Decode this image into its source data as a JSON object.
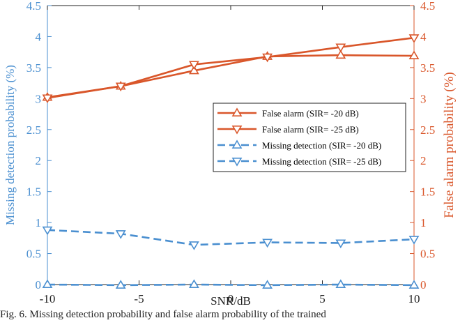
{
  "caption": "Fig. 6.  Missing detection probability and false alarm probability of the trained",
  "chart_data": {
    "type": "line",
    "xlabel": "SNR/dB",
    "ylabel_left": "Missing detection probability (%)",
    "ylabel_right": "False alarm probability (%)",
    "xlim": [
      -10,
      10
    ],
    "ylim_left": [
      0,
      4.5
    ],
    "ylim_right": [
      0,
      4.5
    ],
    "xticks": [
      -10,
      -5,
      0,
      5,
      10
    ],
    "xtick_labels": [
      "-10",
      "-5",
      "0",
      "5",
      "10"
    ],
    "yticks": [
      0,
      0.5,
      1,
      1.5,
      2,
      2.5,
      3,
      3.5,
      4,
      4.5
    ],
    "ytick_labels": [
      "0",
      "0.5",
      "1",
      "1.5",
      "2",
      "2.5",
      "3",
      "3.5",
      "4",
      "4.5"
    ],
    "grid": false,
    "legend_position": "right-middle",
    "series": [
      {
        "name": "False alarm (SIR= -20 dB)",
        "axis": "right",
        "color": "#d9562a",
        "dash": "solid",
        "marker": "triangle-up",
        "x": [
          -10,
          -6,
          -2,
          2,
          6,
          10
        ],
        "y": [
          3.02,
          3.2,
          3.45,
          3.68,
          3.7,
          3.69
        ]
      },
      {
        "name": "False alarm (SIR= -25 dB)",
        "axis": "right",
        "color": "#d9562a",
        "dash": "solid",
        "marker": "triangle-down",
        "x": [
          -10,
          -6,
          -2,
          2,
          6,
          10
        ],
        "y": [
          3.01,
          3.2,
          3.55,
          3.67,
          3.83,
          3.98
        ]
      },
      {
        "name": "Missing detection (SIR= -20 dB)",
        "axis": "left",
        "color": "#4a8fd0",
        "dash": "dashed",
        "marker": "triangle-up",
        "x": [
          -10,
          -6,
          -2,
          2,
          6,
          10
        ],
        "y": [
          0.0,
          -0.01,
          0.0,
          -0.01,
          0.0,
          -0.01
        ]
      },
      {
        "name": "Missing detection (SIR= -25 dB)",
        "axis": "left",
        "color": "#4a8fd0",
        "dash": "dashed",
        "marker": "triangle-down",
        "x": [
          -10,
          -6,
          -2,
          2,
          6,
          10
        ],
        "y": [
          0.88,
          0.82,
          0.64,
          0.68,
          0.67,
          0.73
        ]
      }
    ]
  }
}
